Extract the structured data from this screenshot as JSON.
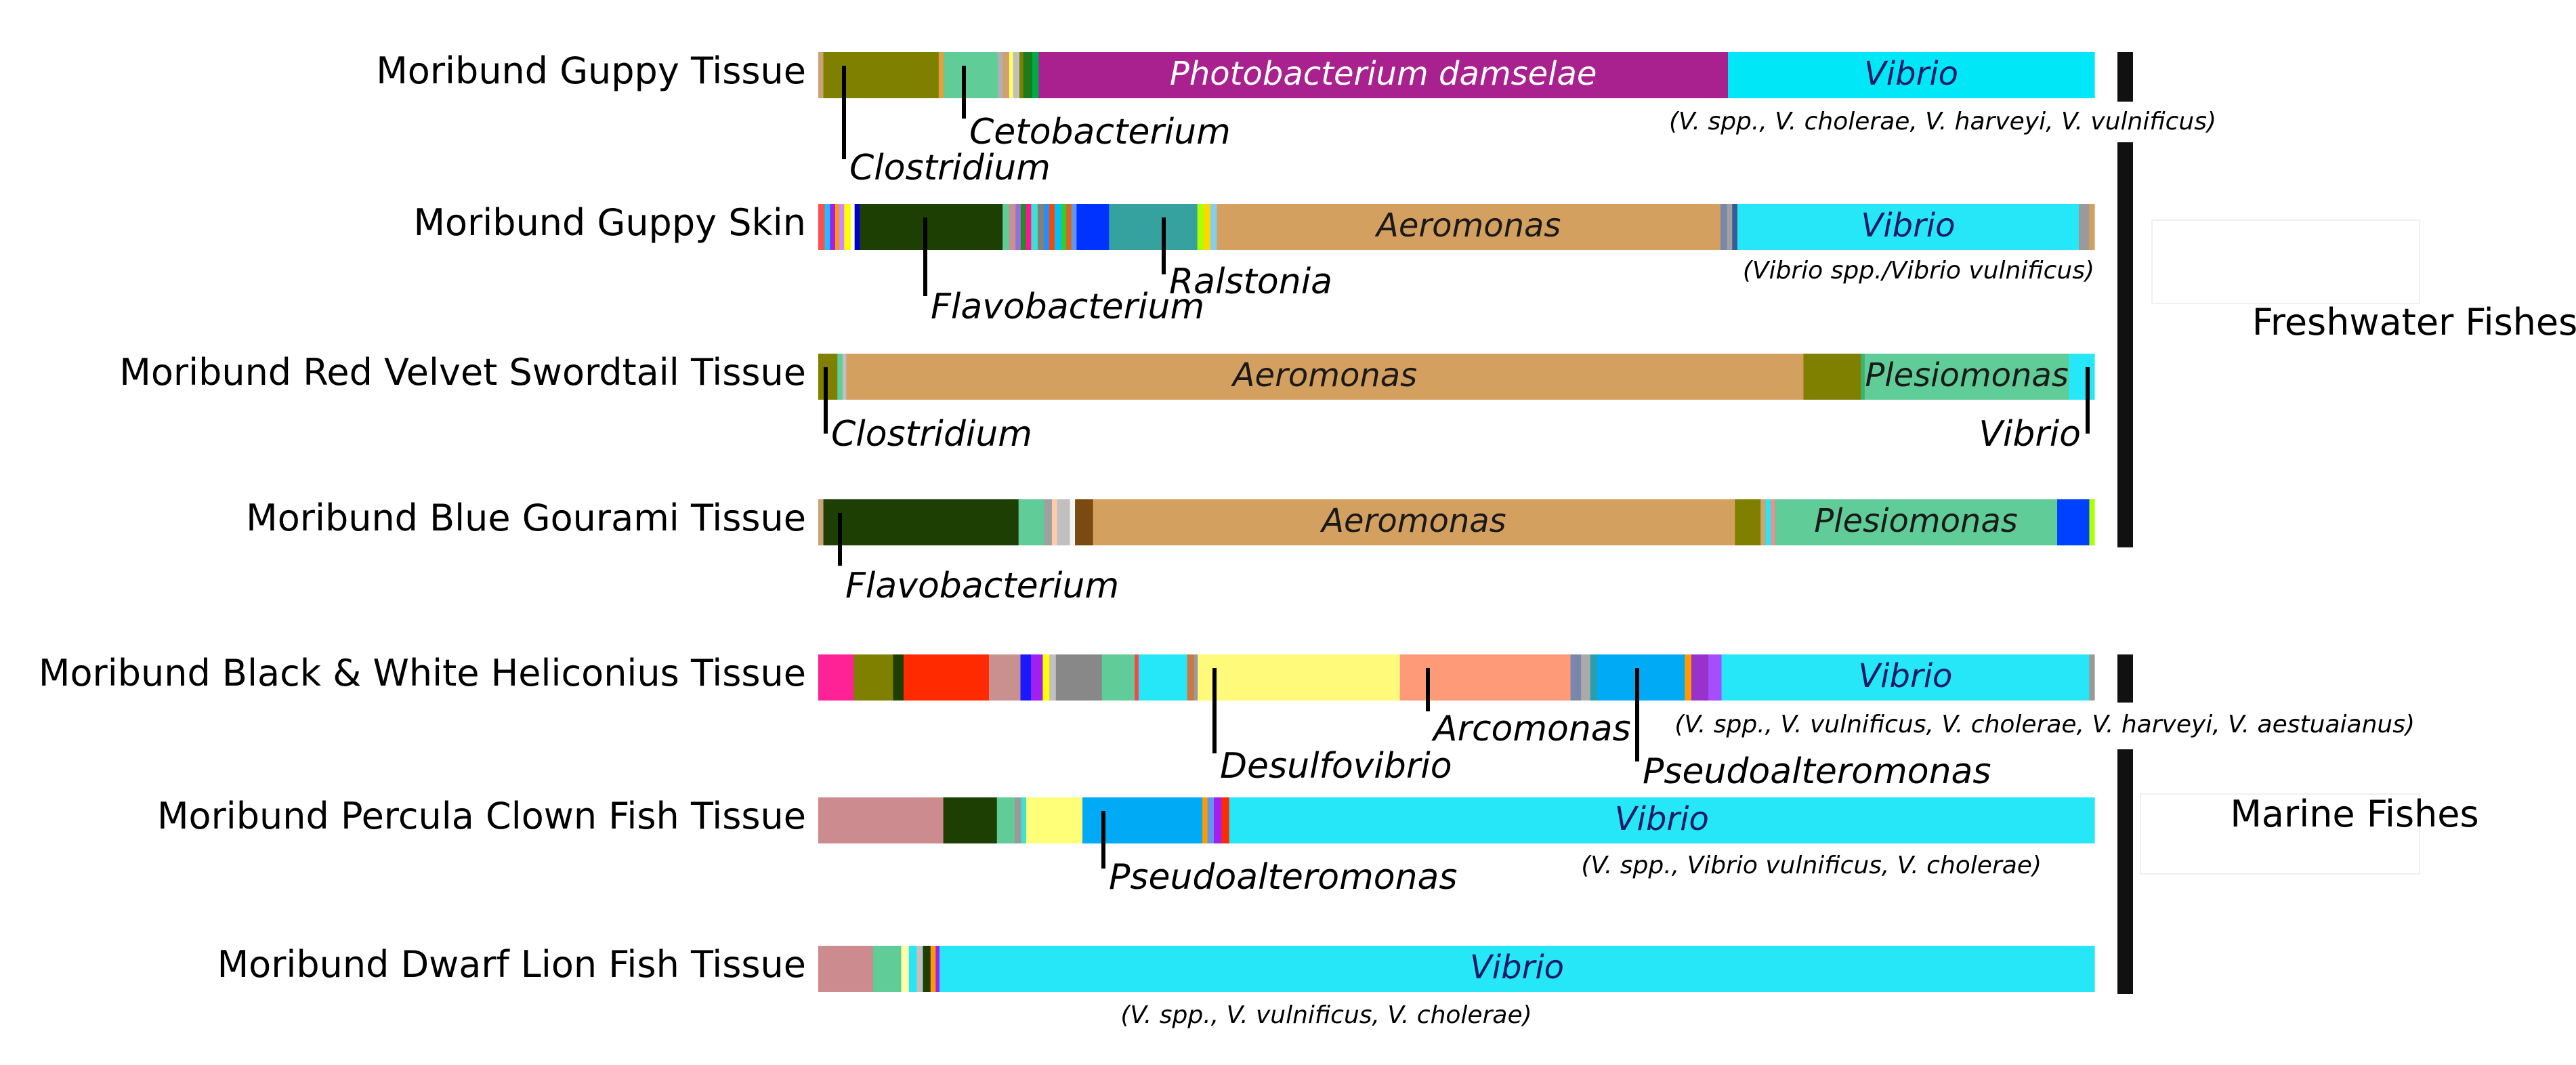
{
  "chart_data": {
    "type": "stacked-bar",
    "orientation": "horizontal",
    "unit": "relative abundance (%)",
    "groups": [
      {
        "name": "Freshwater Fishes",
        "samples": [
          0,
          1,
          2,
          3
        ]
      },
      {
        "name": "Marine Fishes",
        "samples": [
          4,
          5,
          6
        ]
      }
    ],
    "samples": [
      {
        "label": "Moribund Guppy Tissue",
        "segments": [
          {
            "taxon": "other",
            "color": "#c9a477",
            "value": 0.4
          },
          {
            "taxon": "Clostridium",
            "color": "#808000",
            "value": 9.0
          },
          {
            "taxon": "other",
            "color": "#e0a040",
            "value": 0.4
          },
          {
            "taxon": "Cetobacterium",
            "color": "#60cc98",
            "value": 4.2
          },
          {
            "taxon": "other",
            "color": "#b0b0b0",
            "value": 0.4
          },
          {
            "taxon": "other",
            "color": "#d0a070",
            "value": 0.5
          },
          {
            "taxon": "other",
            "color": "#ffff66",
            "value": 0.3
          },
          {
            "taxon": "other",
            "color": "#c0c0c0",
            "value": 0.5
          },
          {
            "taxon": "other",
            "color": "#808000",
            "value": 0.3
          },
          {
            "taxon": "other",
            "color": "#1d7a1d",
            "value": 0.7
          },
          {
            "taxon": "other",
            "color": "#00aa44",
            "value": 0.5
          },
          {
            "taxon": "Photobacterium damselae",
            "color": "#a8218e",
            "value": 53.8
          },
          {
            "taxon": "Vibrio",
            "color": "#00e8f8",
            "value": 28.6
          }
        ],
        "inner_labels": [
          {
            "text": "Photobacterium damselae",
            "segment": 11,
            "color": "#ffffff"
          },
          {
            "text": "Vibrio",
            "segment": 12,
            "color": "#1a1a66"
          }
        ],
        "callouts": [
          {
            "text": "Clostridium",
            "segment": 1
          },
          {
            "text": "Cetobacterium",
            "segment": 3
          }
        ],
        "note": "(V. spp., V. cholerae, V. harveyi, V. vulnificus)"
      },
      {
        "label": "Moribund Guppy Skin",
        "segments": [
          {
            "taxon": "other",
            "color": "#ff5050",
            "value": 0.5
          },
          {
            "taxon": "other",
            "color": "#20c0ff",
            "value": 0.4
          },
          {
            "taxon": "other",
            "color": "#a020f0",
            "value": 0.4
          },
          {
            "taxon": "other",
            "color": "#ff9900",
            "value": 0.3
          },
          {
            "taxon": "other",
            "color": "#cc88ff",
            "value": 0.4
          },
          {
            "taxon": "other",
            "color": "#ffff00",
            "value": 0.5
          },
          {
            "taxon": "other",
            "color": "#ffffff",
            "value": 0.3
          },
          {
            "taxon": "other",
            "color": "#0000cc",
            "value": 0.4
          },
          {
            "taxon": "Flavobacterium",
            "color": "#1d3f03",
            "value": 11.0
          },
          {
            "taxon": "other",
            "color": "#60cc98",
            "value": 0.5
          },
          {
            "taxon": "other",
            "color": "#c99090",
            "value": 0.5
          },
          {
            "taxon": "other",
            "color": "#9370db",
            "value": 0.4
          },
          {
            "taxon": "other",
            "color": "#228b22",
            "value": 0.4
          },
          {
            "taxon": "other",
            "color": "#ff1493",
            "value": 0.4
          },
          {
            "taxon": "other",
            "color": "#40e0d0",
            "value": 0.5
          },
          {
            "taxon": "other",
            "color": "#808080",
            "value": 0.5
          },
          {
            "taxon": "other",
            "color": "#1e90ff",
            "value": 0.4
          },
          {
            "taxon": "other",
            "color": "#ff4500",
            "value": 0.4
          },
          {
            "taxon": "other",
            "color": "#00bfff",
            "value": 0.5
          },
          {
            "taxon": "other",
            "color": "#32cd32",
            "value": 0.4
          },
          {
            "taxon": "other",
            "color": "#d2691e",
            "value": 0.4
          },
          {
            "taxon": "other",
            "color": "#6495ed",
            "value": 0.4
          },
          {
            "taxon": "other",
            "color": "#0033ff",
            "value": 2.5
          },
          {
            "taxon": "Ralstonia",
            "color": "#36a29f",
            "value": 6.8
          },
          {
            "taxon": "other",
            "color": "#aaff00",
            "value": 0.5
          },
          {
            "taxon": "other",
            "color": "#ffd700",
            "value": 0.5
          },
          {
            "taxon": "other",
            "color": "#87ceeb",
            "value": 0.5
          },
          {
            "taxon": "Aeromonas",
            "color": "#d4a060",
            "value": 38.8
          },
          {
            "taxon": "other",
            "color": "#7788aa",
            "value": 0.5
          },
          {
            "taxon": "other",
            "color": "#a0a0a0",
            "value": 0.4
          },
          {
            "taxon": "other",
            "color": "#3b5998",
            "value": 0.4
          },
          {
            "taxon": "Vibrio",
            "color": "#26e7f7",
            "value": 26.3
          },
          {
            "taxon": "other",
            "color": "#9a9a9a",
            "value": 0.8
          },
          {
            "taxon": "other",
            "color": "#d4a060",
            "value": 0.4
          }
        ],
        "inner_labels": [
          {
            "text": "Aeromonas",
            "segment": 27,
            "color": "#1a1a1a"
          },
          {
            "text": "Vibrio",
            "segment": 31,
            "color": "#1a1a66"
          }
        ],
        "callouts": [
          {
            "text": "Flavobacterium",
            "segment": 8
          },
          {
            "text": "Ralstonia",
            "segment": 23
          }
        ],
        "note": "(Vibrio spp./Vibrio vulnificus)"
      },
      {
        "label": "Moribund Red Velvet Swordtail Tissue",
        "segments": [
          {
            "taxon": "Clostridium",
            "color": "#808000",
            "value": 1.5
          },
          {
            "taxon": "other",
            "color": "#60cc98",
            "value": 0.4
          },
          {
            "taxon": "other",
            "color": "#c0c0c0",
            "value": 0.3
          },
          {
            "taxon": "Aeromonas",
            "color": "#d4a060",
            "value": 75.0
          },
          {
            "taxon": "other",
            "color": "#808000",
            "value": 4.5
          },
          {
            "taxon": "other",
            "color": "#3cb371",
            "value": 0.3
          },
          {
            "taxon": "Plesiomonas",
            "color": "#60cc98",
            "value": 16.0
          },
          {
            "taxon": "Vibrio",
            "color": "#26e7f7",
            "value": 2.0
          }
        ],
        "inner_labels": [
          {
            "text": "Aeromonas",
            "segment": 3,
            "color": "#1a1a1a"
          },
          {
            "text": "Plesiomonas",
            "segment": 6,
            "color": "#1a1a1a"
          }
        ],
        "callouts": [
          {
            "text": "Clostridium",
            "segment": 0
          },
          {
            "text": "Vibrio",
            "segment": 7
          }
        ],
        "note": ""
      },
      {
        "label": "Moribund Blue Gourami Tissue",
        "segments": [
          {
            "taxon": "other",
            "color": "#c9a477",
            "value": 0.4
          },
          {
            "taxon": "Flavobacterium",
            "color": "#1d3f03",
            "value": 15.2
          },
          {
            "taxon": "other",
            "color": "#60cc98",
            "value": 2.0
          },
          {
            "taxon": "other",
            "color": "#a0a0a0",
            "value": 0.6
          },
          {
            "taxon": "other",
            "color": "#ffccaa",
            "value": 0.4
          },
          {
            "taxon": "other",
            "color": "#c0c0c0",
            "value": 1.0
          },
          {
            "taxon": "other",
            "color": "#f5f5f5",
            "value": 0.4
          },
          {
            "taxon": "other",
            "color": "#7a4a10",
            "value": 1.4
          },
          {
            "taxon": "Aeromonas",
            "color": "#d4a060",
            "value": 50.0
          },
          {
            "taxon": "other",
            "color": "#808000",
            "value": 2.0
          },
          {
            "taxon": "other",
            "color": "#c9a477",
            "value": 0.4
          },
          {
            "taxon": "other",
            "color": "#26e7f7",
            "value": 0.4
          },
          {
            "taxon": "other",
            "color": "#ff8888",
            "value": 0.3
          },
          {
            "taxon": "Plesiomonas",
            "color": "#60cc98",
            "value": 22.0
          },
          {
            "taxon": "other",
            "color": "#0040ff",
            "value": 2.5
          },
          {
            "taxon": "other",
            "color": "#aaff00",
            "value": 0.4
          }
        ],
        "inner_labels": [
          {
            "text": "Aeromonas",
            "segment": 8,
            "color": "#1a1a1a"
          },
          {
            "text": "Plesiomonas",
            "segment": 13,
            "color": "#1a1a1a"
          }
        ],
        "callouts": [
          {
            "text": "Flavobacterium",
            "segment": 1
          }
        ],
        "note": ""
      },
      {
        "label": "Moribund Black & White Heliconius Tissue",
        "segments": [
          {
            "taxon": "other",
            "color": "#ff2296",
            "value": 2.7
          },
          {
            "taxon": "other",
            "color": "#808000",
            "value": 3.0
          },
          {
            "taxon": "other",
            "color": "#1d3f03",
            "value": 0.8
          },
          {
            "taxon": "other",
            "color": "#ff2a00",
            "value": 6.5
          },
          {
            "taxon": "other",
            "color": "#c99090",
            "value": 2.4
          },
          {
            "taxon": "other",
            "color": "#1a1aff",
            "value": 0.8
          },
          {
            "taxon": "other",
            "color": "#a020f0",
            "value": 0.9
          },
          {
            "taxon": "other",
            "color": "#ffff00",
            "value": 0.5
          },
          {
            "taxon": "other",
            "color": "#c0c0c0",
            "value": 0.5
          },
          {
            "taxon": "other",
            "color": "#888888",
            "value": 3.5
          },
          {
            "taxon": "other",
            "color": "#60cc98",
            "value": 2.5
          },
          {
            "taxon": "other",
            "color": "#ff4444",
            "value": 0.3
          },
          {
            "taxon": "other",
            "color": "#26e7f7",
            "value": 3.7
          },
          {
            "taxon": "other",
            "color": "#cc7744",
            "value": 0.5
          },
          {
            "taxon": "other",
            "color": "#9a9a9a",
            "value": 0.3
          },
          {
            "taxon": "Desulfovibrio",
            "color": "#fffa7a",
            "value": 15.4
          },
          {
            "taxon": "Arcomonas",
            "color": "#ff9a78",
            "value": 13.0
          },
          {
            "taxon": "other",
            "color": "#7788aa",
            "value": 0.8
          },
          {
            "taxon": "other",
            "color": "#aaaaaa",
            "value": 0.7
          },
          {
            "taxon": "other",
            "color": "#2a9faa",
            "value": 0.5
          },
          {
            "taxon": "Pseudoalteromonas",
            "color": "#00aaf5",
            "value": 6.7
          },
          {
            "taxon": "other",
            "color": "#ff9900",
            "value": 0.5
          },
          {
            "taxon": "other",
            "color": "#9932cc",
            "value": 1.3
          },
          {
            "taxon": "other",
            "color": "#a64dff",
            "value": 1.0
          },
          {
            "taxon": "Vibrio",
            "color": "#26e7f7",
            "value": 28.0
          },
          {
            "taxon": "other",
            "color": "#9a9a9a",
            "value": 0.4
          }
        ],
        "inner_labels": [
          {
            "text": "Vibrio",
            "segment": 24,
            "color": "#1a1a66"
          }
        ],
        "callouts": [
          {
            "text": "Desulfovibrio",
            "segment": 15
          },
          {
            "text": "Arcomonas",
            "segment": 16
          },
          {
            "text": "Pseudoalteromonas",
            "segment": 20
          }
        ],
        "note": "(V. spp., V. vulnificus, V. cholerae, V. harveyi, V. aestuaianus)"
      },
      {
        "label": "Moribund Percula Clown Fish Tissue",
        "segments": [
          {
            "taxon": "other",
            "color": "#cc8b8f",
            "value": 9.8
          },
          {
            "taxon": "other",
            "color": "#1d3f03",
            "value": 4.2
          },
          {
            "taxon": "other",
            "color": "#60cc98",
            "value": 1.4
          },
          {
            "taxon": "other",
            "color": "#9a9a9a",
            "value": 0.5
          },
          {
            "taxon": "other",
            "color": "#40e0d0",
            "value": 0.4
          },
          {
            "taxon": "other",
            "color": "#ffff78",
            "value": 4.4
          },
          {
            "taxon": "Pseudoalteromonas",
            "color": "#00aaf5",
            "value": 9.4
          },
          {
            "taxon": "other",
            "color": "#ff9900",
            "value": 0.4
          },
          {
            "taxon": "other",
            "color": "#6495ed",
            "value": 0.5
          },
          {
            "taxon": "other",
            "color": "#a020f0",
            "value": 0.6
          },
          {
            "taxon": "other",
            "color": "#ff2a00",
            "value": 0.6
          },
          {
            "taxon": "Vibrio",
            "color": "#26e7f7",
            "value": 67.8
          }
        ],
        "inner_labels": [
          {
            "text": "Vibrio",
            "segment": 11,
            "color": "#1a1a66"
          }
        ],
        "callouts": [
          {
            "text": "Pseudoalteromonas",
            "segment": 6
          }
        ],
        "note": "(V. spp., Vibrio vulnificus,  V. cholerae)"
      },
      {
        "label": "Moribund Dwarf Lion Fish Tissue",
        "segments": [
          {
            "taxon": "other",
            "color": "#cc8b8f",
            "value": 4.3
          },
          {
            "taxon": "other",
            "color": "#60cc98",
            "value": 2.2
          },
          {
            "taxon": "other",
            "color": "#ffffaa",
            "value": 0.6
          },
          {
            "taxon": "other",
            "color": "#26e7f7",
            "value": 0.6
          },
          {
            "taxon": "other",
            "color": "#c0c0c0",
            "value": 0.5
          },
          {
            "taxon": "other",
            "color": "#1d3f03",
            "value": 0.6
          },
          {
            "taxon": "other",
            "color": "#ff9900",
            "value": 0.4
          },
          {
            "taxon": "other",
            "color": "#a020f0",
            "value": 0.3
          },
          {
            "taxon": "Vibrio",
            "color": "#26e7f7",
            "value": 90.5
          }
        ],
        "inner_labels": [
          {
            "text": "Vibrio",
            "segment": 8,
            "color": "#1a1a66"
          }
        ],
        "callouts": [],
        "note": "(V. spp., V. vulnificus, V. cholerae)"
      }
    ]
  }
}
